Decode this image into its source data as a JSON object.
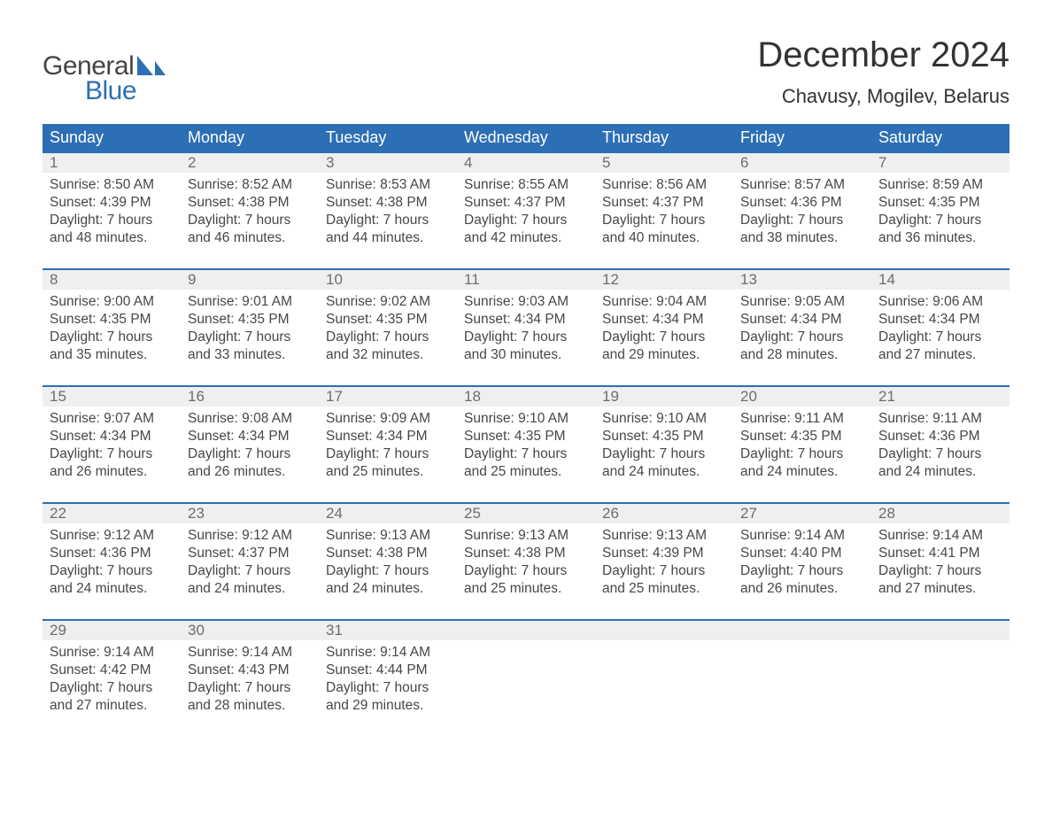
{
  "brand": {
    "general": "General",
    "blue": "Blue",
    "sail_color": "#2d6fb4",
    "general_color": "#454545",
    "blue_color": "#2d6fb4"
  },
  "title": {
    "month": "December 2024",
    "location": "Chavusy, Mogilev, Belarus",
    "title_fontsize": 40,
    "location_fontsize": 22,
    "text_color": "#333333"
  },
  "calendar": {
    "header_bg": "#2d6fb4",
    "header_text_color": "#ffffff",
    "week_border_color": "#2d6fb4",
    "daynum_bg": "#efefef",
    "daynum_color": "#6d6d6d",
    "body_text_color": "#474747",
    "dow_fontsize": 18,
    "body_fontsize": 15.5,
    "days_of_week": [
      "Sunday",
      "Monday",
      "Tuesday",
      "Wednesday",
      "Thursday",
      "Friday",
      "Saturday"
    ],
    "weeks": [
      [
        {
          "n": "1",
          "sunrise": "Sunrise: 8:50 AM",
          "sunset": "Sunset: 4:39 PM",
          "d1": "Daylight: 7 hours",
          "d2": "and 48 minutes."
        },
        {
          "n": "2",
          "sunrise": "Sunrise: 8:52 AM",
          "sunset": "Sunset: 4:38 PM",
          "d1": "Daylight: 7 hours",
          "d2": "and 46 minutes."
        },
        {
          "n": "3",
          "sunrise": "Sunrise: 8:53 AM",
          "sunset": "Sunset: 4:38 PM",
          "d1": "Daylight: 7 hours",
          "d2": "and 44 minutes."
        },
        {
          "n": "4",
          "sunrise": "Sunrise: 8:55 AM",
          "sunset": "Sunset: 4:37 PM",
          "d1": "Daylight: 7 hours",
          "d2": "and 42 minutes."
        },
        {
          "n": "5",
          "sunrise": "Sunrise: 8:56 AM",
          "sunset": "Sunset: 4:37 PM",
          "d1": "Daylight: 7 hours",
          "d2": "and 40 minutes."
        },
        {
          "n": "6",
          "sunrise": "Sunrise: 8:57 AM",
          "sunset": "Sunset: 4:36 PM",
          "d1": "Daylight: 7 hours",
          "d2": "and 38 minutes."
        },
        {
          "n": "7",
          "sunrise": "Sunrise: 8:59 AM",
          "sunset": "Sunset: 4:35 PM",
          "d1": "Daylight: 7 hours",
          "d2": "and 36 minutes."
        }
      ],
      [
        {
          "n": "8",
          "sunrise": "Sunrise: 9:00 AM",
          "sunset": "Sunset: 4:35 PM",
          "d1": "Daylight: 7 hours",
          "d2": "and 35 minutes."
        },
        {
          "n": "9",
          "sunrise": "Sunrise: 9:01 AM",
          "sunset": "Sunset: 4:35 PM",
          "d1": "Daylight: 7 hours",
          "d2": "and 33 minutes."
        },
        {
          "n": "10",
          "sunrise": "Sunrise: 9:02 AM",
          "sunset": "Sunset: 4:35 PM",
          "d1": "Daylight: 7 hours",
          "d2": "and 32 minutes."
        },
        {
          "n": "11",
          "sunrise": "Sunrise: 9:03 AM",
          "sunset": "Sunset: 4:34 PM",
          "d1": "Daylight: 7 hours",
          "d2": "and 30 minutes."
        },
        {
          "n": "12",
          "sunrise": "Sunrise: 9:04 AM",
          "sunset": "Sunset: 4:34 PM",
          "d1": "Daylight: 7 hours",
          "d2": "and 29 minutes."
        },
        {
          "n": "13",
          "sunrise": "Sunrise: 9:05 AM",
          "sunset": "Sunset: 4:34 PM",
          "d1": "Daylight: 7 hours",
          "d2": "and 28 minutes."
        },
        {
          "n": "14",
          "sunrise": "Sunrise: 9:06 AM",
          "sunset": "Sunset: 4:34 PM",
          "d1": "Daylight: 7 hours",
          "d2": "and 27 minutes."
        }
      ],
      [
        {
          "n": "15",
          "sunrise": "Sunrise: 9:07 AM",
          "sunset": "Sunset: 4:34 PM",
          "d1": "Daylight: 7 hours",
          "d2": "and 26 minutes."
        },
        {
          "n": "16",
          "sunrise": "Sunrise: 9:08 AM",
          "sunset": "Sunset: 4:34 PM",
          "d1": "Daylight: 7 hours",
          "d2": "and 26 minutes."
        },
        {
          "n": "17",
          "sunrise": "Sunrise: 9:09 AM",
          "sunset": "Sunset: 4:34 PM",
          "d1": "Daylight: 7 hours",
          "d2": "and 25 minutes."
        },
        {
          "n": "18",
          "sunrise": "Sunrise: 9:10 AM",
          "sunset": "Sunset: 4:35 PM",
          "d1": "Daylight: 7 hours",
          "d2": "and 25 minutes."
        },
        {
          "n": "19",
          "sunrise": "Sunrise: 9:10 AM",
          "sunset": "Sunset: 4:35 PM",
          "d1": "Daylight: 7 hours",
          "d2": "and 24 minutes."
        },
        {
          "n": "20",
          "sunrise": "Sunrise: 9:11 AM",
          "sunset": "Sunset: 4:35 PM",
          "d1": "Daylight: 7 hours",
          "d2": "and 24 minutes."
        },
        {
          "n": "21",
          "sunrise": "Sunrise: 9:11 AM",
          "sunset": "Sunset: 4:36 PM",
          "d1": "Daylight: 7 hours",
          "d2": "and 24 minutes."
        }
      ],
      [
        {
          "n": "22",
          "sunrise": "Sunrise: 9:12 AM",
          "sunset": "Sunset: 4:36 PM",
          "d1": "Daylight: 7 hours",
          "d2": "and 24 minutes."
        },
        {
          "n": "23",
          "sunrise": "Sunrise: 9:12 AM",
          "sunset": "Sunset: 4:37 PM",
          "d1": "Daylight: 7 hours",
          "d2": "and 24 minutes."
        },
        {
          "n": "24",
          "sunrise": "Sunrise: 9:13 AM",
          "sunset": "Sunset: 4:38 PM",
          "d1": "Daylight: 7 hours",
          "d2": "and 24 minutes."
        },
        {
          "n": "25",
          "sunrise": "Sunrise: 9:13 AM",
          "sunset": "Sunset: 4:38 PM",
          "d1": "Daylight: 7 hours",
          "d2": "and 25 minutes."
        },
        {
          "n": "26",
          "sunrise": "Sunrise: 9:13 AM",
          "sunset": "Sunset: 4:39 PM",
          "d1": "Daylight: 7 hours",
          "d2": "and 25 minutes."
        },
        {
          "n": "27",
          "sunrise": "Sunrise: 9:14 AM",
          "sunset": "Sunset: 4:40 PM",
          "d1": "Daylight: 7 hours",
          "d2": "and 26 minutes."
        },
        {
          "n": "28",
          "sunrise": "Sunrise: 9:14 AM",
          "sunset": "Sunset: 4:41 PM",
          "d1": "Daylight: 7 hours",
          "d2": "and 27 minutes."
        }
      ],
      [
        {
          "n": "29",
          "sunrise": "Sunrise: 9:14 AM",
          "sunset": "Sunset: 4:42 PM",
          "d1": "Daylight: 7 hours",
          "d2": "and 27 minutes."
        },
        {
          "n": "30",
          "sunrise": "Sunrise: 9:14 AM",
          "sunset": "Sunset: 4:43 PM",
          "d1": "Daylight: 7 hours",
          "d2": "and 28 minutes."
        },
        {
          "n": "31",
          "sunrise": "Sunrise: 9:14 AM",
          "sunset": "Sunset: 4:44 PM",
          "d1": "Daylight: 7 hours",
          "d2": "and 29 minutes."
        },
        {
          "empty": true
        },
        {
          "empty": true
        },
        {
          "empty": true
        },
        {
          "empty": true
        }
      ]
    ]
  }
}
